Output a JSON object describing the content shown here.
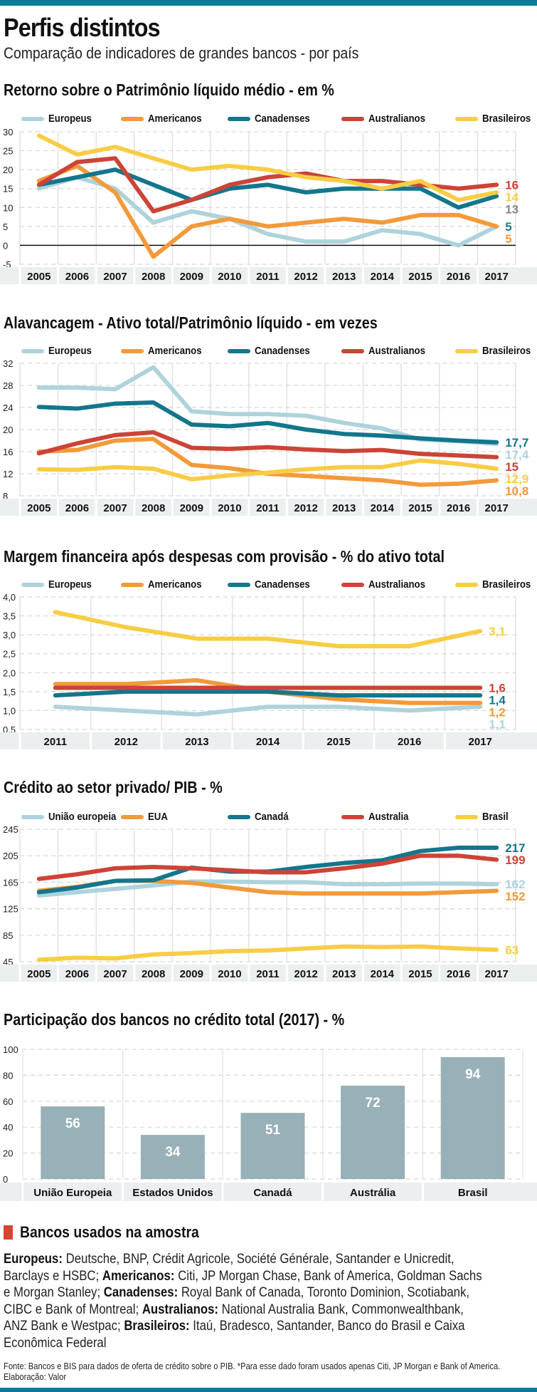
{
  "header": {
    "title": "Perfis distintos",
    "subtitle": "Comparação de indicadores de grandes bancos - por país"
  },
  "colors": {
    "europeus": "#aed3dc",
    "americanos": "#f39a3b",
    "canadenses": "#13768c",
    "australianos": "#cc4437",
    "brasileiros": "#f8cd45",
    "bar": "#98b0b7",
    "brand": "#0a7b96",
    "label_13": "#8a8a8a"
  },
  "chart_data": [
    {
      "type": "line",
      "title": "Retorno sobre o Patrimônio líquido médio - em %",
      "x": [
        "2005",
        "2006",
        "2007",
        "2008",
        "2009",
        "2010",
        "2011",
        "2012",
        "2013",
        "2014",
        "2015",
        "2016",
        "2017"
      ],
      "yticks": [
        "30",
        "25",
        "20",
        "15",
        "10",
        "5",
        "0",
        "-5"
      ],
      "ylim": [
        -5,
        30
      ],
      "grid": true,
      "legend_position": "top",
      "series": [
        {
          "name": "Europeus",
          "key": "europeus",
          "values": [
            15,
            18,
            15,
            6,
            9,
            7,
            3,
            1,
            1,
            4,
            3,
            0,
            5
          ],
          "end_label": "5",
          "end_label_color": "#1a7a93"
        },
        {
          "name": "Americanos",
          "key": "americanos",
          "values": [
            17,
            21,
            14,
            -3,
            5,
            7,
            5,
            6,
            7,
            6,
            8,
            8,
            5
          ],
          "end_label": "5",
          "end_label_color": "#f39a3b"
        },
        {
          "name": "Canadenses",
          "key": "canadenses",
          "values": [
            16,
            18,
            20,
            16,
            12,
            15,
            16,
            14,
            15,
            15,
            15,
            10,
            13
          ],
          "end_label": "13",
          "end_label_color": "#8a8a8a"
        },
        {
          "name": "Australianos",
          "key": "australianos",
          "values": [
            16,
            22,
            23,
            9,
            12,
            16,
            18,
            19,
            17,
            17,
            16,
            15,
            16
          ],
          "end_label": "16",
          "end_label_color": "#cc4437"
        },
        {
          "name": "Brasileiros",
          "key": "brasileiros",
          "values": [
            29,
            24,
            26,
            23,
            20,
            21,
            20,
            18,
            17,
            15,
            17,
            12,
            14
          ],
          "end_label": "14",
          "end_label_color": "#f8cd45"
        }
      ]
    },
    {
      "type": "line",
      "title": "Alavancagem - Ativo total/Patrimônio líquido - em vezes",
      "x": [
        "2005",
        "2006",
        "2007",
        "2008",
        "2009",
        "2010",
        "2011",
        "2012",
        "2013",
        "2014",
        "2015",
        "2016",
        "2017"
      ],
      "yticks": [
        "32",
        "28",
        "24",
        "20",
        "16",
        "12",
        "8"
      ],
      "ylim": [
        8,
        32
      ],
      "grid": true,
      "legend_position": "top",
      "series": [
        {
          "name": "Europeus",
          "key": "europeus",
          "values": [
            27.6,
            27.6,
            27.3,
            31.3,
            23.3,
            22.8,
            22.8,
            22.5,
            21.2,
            20.2,
            18.2,
            17.9,
            17.4
          ],
          "end_label": "17,4",
          "end_label_color": "#aed3dc"
        },
        {
          "name": "Americanos",
          "key": "americanos",
          "values": [
            16,
            16.3,
            18,
            18.3,
            13.6,
            13,
            12,
            11.6,
            11.2,
            10.8,
            10,
            10.2,
            10.8
          ],
          "end_label": "10,8",
          "end_label_color": "#f39a3b"
        },
        {
          "name": "Canadenses",
          "key": "canadenses",
          "values": [
            24.1,
            23.8,
            24.7,
            24.9,
            20.9,
            20.6,
            21.2,
            20,
            19.2,
            18.9,
            18.4,
            18,
            17.7
          ],
          "end_label": "17,7",
          "end_label_color": "#13768c"
        },
        {
          "name": "Australianos",
          "key": "australianos",
          "values": [
            15.7,
            17.5,
            19,
            19.5,
            16.7,
            16.5,
            16.8,
            16.4,
            16.1,
            16.3,
            15.6,
            15.3,
            15
          ],
          "end_label": "15",
          "end_label_color": "#cc4437"
        },
        {
          "name": "Brasileiros",
          "key": "brasileiros",
          "values": [
            12.8,
            12.7,
            13.2,
            12.9,
            11,
            11.7,
            12.2,
            12.8,
            13.2,
            13.2,
            14.4,
            13.8,
            12.9
          ],
          "end_label": "12,9",
          "end_label_color": "#f8cd45"
        }
      ]
    },
    {
      "type": "line",
      "title": "Margem financeira após despesas com provisão - % do ativo total",
      "x": [
        "2011",
        "2012",
        "2013",
        "2014",
        "2015",
        "2016",
        "2017"
      ],
      "yticks": [
        "4,0",
        "3,5",
        "3,0",
        "2,5",
        "2,0",
        "1,5",
        "1,0",
        "0,5"
      ],
      "ylim": [
        0.5,
        4.0
      ],
      "grid": true,
      "legend_position": "top",
      "series": [
        {
          "name": "Europeus",
          "key": "europeus",
          "values": [
            1.1,
            1.0,
            0.9,
            1.1,
            1.1,
            1.0,
            1.1
          ],
          "end_label": "1,1",
          "end_label_color": "#aed3dc"
        },
        {
          "name": "Americanos",
          "key": "americanos",
          "values": [
            1.7,
            1.7,
            1.8,
            1.5,
            1.3,
            1.2,
            1.2
          ],
          "end_label": "1,2",
          "end_label_color": "#f39a3b"
        },
        {
          "name": "Canadenses",
          "key": "canadenses",
          "values": [
            1.4,
            1.5,
            1.5,
            1.5,
            1.4,
            1.4,
            1.4
          ],
          "end_label": "1,4",
          "end_label_color": "#13768c"
        },
        {
          "name": "Australianos",
          "key": "australianos",
          "values": [
            1.6,
            1.6,
            1.6,
            1.6,
            1.6,
            1.6,
            1.6
          ],
          "end_label": "1,6",
          "end_label_color": "#cc4437"
        },
        {
          "name": "Brasileiros",
          "key": "brasileiros",
          "values": [
            3.6,
            3.2,
            2.9,
            2.9,
            2.7,
            2.7,
            3.1
          ],
          "end_label": "3,1",
          "end_label_color": "#f8cd45"
        }
      ]
    },
    {
      "type": "line",
      "title": "Crédito ao setor privado/ PIB - %",
      "x": [
        "2005",
        "2006",
        "2007",
        "2008",
        "2009",
        "2010",
        "2011",
        "2012",
        "2013",
        "2014",
        "2015",
        "2016",
        "2017"
      ],
      "yticks": [
        "245",
        "205",
        "165",
        "125",
        "85",
        "45"
      ],
      "ylim": [
        45,
        245
      ],
      "grid": true,
      "legend_position": "top",
      "series": [
        {
          "name": "União europeia",
          "key": "europeus",
          "values": [
            145,
            150,
            155,
            160,
            166,
            166,
            165,
            165,
            162,
            162,
            163,
            163,
            162
          ],
          "end_label": "162",
          "end_label_color": "#aed3dc"
        },
        {
          "name": "EUA",
          "key": "americanos",
          "values": [
            152,
            158,
            167,
            167,
            164,
            157,
            150,
            148,
            148,
            148,
            148,
            150,
            152
          ],
          "end_label": "152",
          "end_label_color": "#f39a3b"
        },
        {
          "name": "Canadá",
          "key": "canadenses",
          "values": [
            150,
            157,
            167,
            168,
            187,
            181,
            181,
            188,
            194,
            198,
            212,
            217,
            217
          ],
          "end_label": "217",
          "end_label_color": "#13768c"
        },
        {
          "name": "Australia",
          "key": "australianos",
          "values": [
            170,
            177,
            186,
            188,
            186,
            183,
            180,
            180,
            186,
            193,
            205,
            205,
            199
          ],
          "end_label": "199",
          "end_label_color": "#cc4437"
        },
        {
          "name": "Brasil",
          "key": "brasileiros",
          "values": [
            48,
            51,
            50,
            56,
            58,
            61,
            62,
            65,
            68,
            67,
            68,
            65,
            63
          ],
          "end_label": "63",
          "end_label_color": "#f8cd45"
        }
      ]
    },
    {
      "type": "bar",
      "title": "Participação dos bancos no crédito total (2017) - %",
      "categories": [
        "União Europeia",
        "Estados Unidos",
        "Canadá",
        "Austrália",
        "Brasil"
      ],
      "values": [
        56,
        34,
        51,
        72,
        94
      ],
      "data_labels": [
        "56",
        "34",
        "51",
        "72",
        "94"
      ],
      "yticks": [
        "100",
        "80",
        "60",
        "40",
        "20",
        "0"
      ],
      "ylim": [
        0,
        100
      ],
      "grid": true
    }
  ],
  "notes": {
    "title": "Bancos usados na amostra",
    "groups": [
      {
        "label": "Europeus:",
        "text": " Deutsche, BNP, Crédit Agricole, Société Générale, Santander e Unicredit, Barclays e HSBC; "
      },
      {
        "label": "Americanos:",
        "text": " Citi, JP Morgan Chase, Bank of America, Goldman Sachs e Morgan Stanley; "
      },
      {
        "label": "Canadenses:",
        "text": " Royal Bank of Canada, Toronto Dominion, Scotiabank, CIBC e Bank of Montreal; "
      },
      {
        "label": "Australianos:",
        "text": " National Australia Bank, Commonwealthbank, ANZ Bank e Westpac; "
      },
      {
        "label": "Brasileiros:",
        "text": " Itaú, Bradesco, Santander, Banco do Brasil e Caixa Econômica Federal"
      }
    ]
  },
  "source": "Fonte: Bancos e BIS para dados de oferta de crédito sobre o PIB. *Para esse dado foram usados apenas Citi, JP Morgan e Bank of America. Elaboração: Valor"
}
